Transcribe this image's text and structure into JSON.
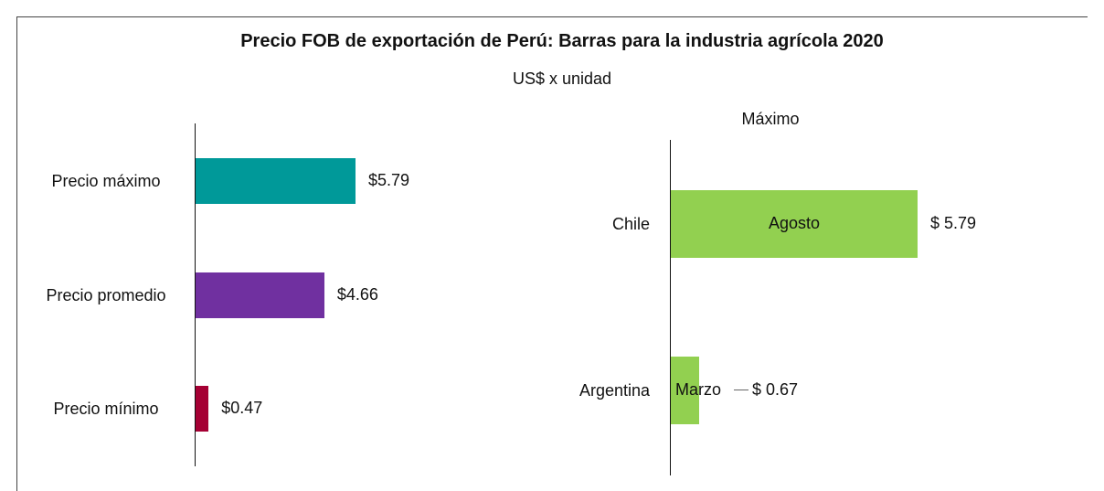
{
  "title": "Precio FOB de exportación de Perú: Barras para la industria agrícola 2020",
  "subtitle": "US$ x unidad",
  "chart_data": [
    {
      "type": "bar",
      "orientation": "horizontal",
      "categories": [
        "Precio máximo",
        "Precio promedio",
        "Precio mínimo"
      ],
      "values": [
        5.79,
        4.66,
        0.47
      ],
      "value_labels": [
        "$5.79",
        "$4.66",
        "$0.47"
      ],
      "colors": [
        "#009999",
        "#7030a0",
        "#a50034"
      ]
    },
    {
      "type": "bar",
      "orientation": "horizontal",
      "title": "Máximo",
      "categories": [
        "Chile",
        "Argentina"
      ],
      "values": [
        5.79,
        0.67
      ],
      "value_labels": [
        "$ 5.79",
        "$ 0.67"
      ],
      "annotations": [
        "Agosto",
        "Marzo"
      ],
      "color": "#92d050"
    }
  ]
}
